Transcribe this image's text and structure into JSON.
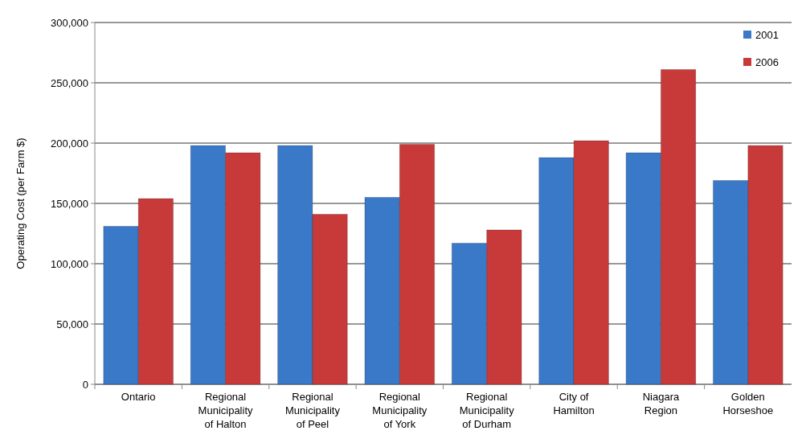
{
  "chart_data": {
    "type": "bar",
    "ylabel": "Operating Cost (per Farm $)",
    "categories": [
      "Ontario",
      "Regional Municipality of Halton",
      "Regional Municipality of Peel",
      "Regional Municipality of York",
      "Regional Municipality of Durham",
      "City of Hamilton",
      "Niagara Region",
      "Golden Horseshoe"
    ],
    "series": [
      {
        "name": "2001",
        "color": "#3a78c8",
        "values": [
          131000,
          198000,
          198000,
          155000,
          117000,
          188000,
          192000,
          169000
        ]
      },
      {
        "name": "2006",
        "color": "#c83a3a",
        "values": [
          154000,
          192000,
          141000,
          199000,
          128000,
          202000,
          261000,
          198000
        ]
      }
    ],
    "ylim": [
      0,
      300000
    ],
    "yticks": [
      {
        "value": 0,
        "label": "0"
      },
      {
        "value": 50000,
        "label": "50,000"
      },
      {
        "value": 100000,
        "label": "100,000"
      },
      {
        "value": 150000,
        "label": "150,000"
      },
      {
        "value": 200000,
        "label": "200,000"
      },
      {
        "value": 250000,
        "label": "250,000"
      },
      {
        "value": 300000,
        "label": "300,000"
      }
    ],
    "grid": "y",
    "legend": "top right"
  }
}
